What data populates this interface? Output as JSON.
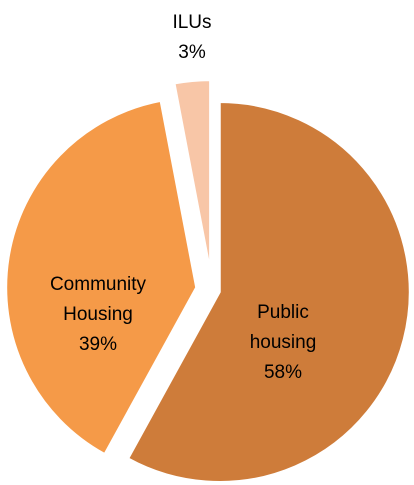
{
  "chart_data": {
    "type": "pie",
    "exploded": true,
    "start_angle_deg": 0,
    "direction": "clockwise",
    "legend": "none",
    "slices": [
      {
        "name": "Public housing",
        "label_lines": [
          "Public",
          "housing",
          "58%"
        ],
        "value": 58,
        "color": "#CE7C3A",
        "key": "public"
      },
      {
        "name": "Community Housing",
        "label_lines": [
          "Community",
          "Housing",
          "39%"
        ],
        "value": 39,
        "color": "#F59A48",
        "key": "community"
      },
      {
        "name": "ILUs",
        "label_lines": [
          "ILUs",
          "3%"
        ],
        "value": 3,
        "color": "#F8C6A7",
        "key": "ilus"
      }
    ]
  }
}
